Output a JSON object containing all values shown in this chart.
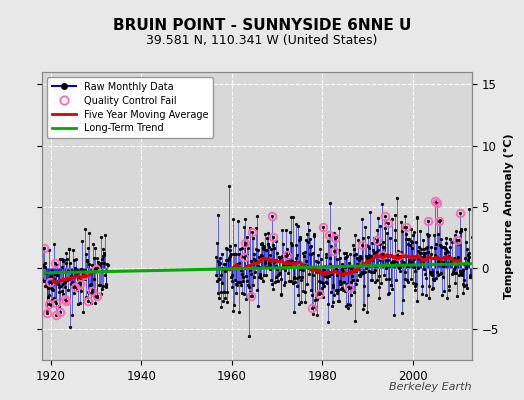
{
  "title": "BRUIN POINT - SUNNYSIDE 6NNE U",
  "subtitle": "39.581 N, 110.341 W (United States)",
  "ylabel": "Temperature Anomaly (°C)",
  "watermark": "Berkeley Earth",
  "xlim": [
    1918,
    2013
  ],
  "ylim": [
    -7.5,
    16
  ],
  "yticks": [
    -5,
    0,
    5,
    10,
    15
  ],
  "xticks": [
    1920,
    1940,
    1960,
    1980,
    2000
  ],
  "bg_color": "#e8e8e8",
  "plot_bg_color": "#d8d8d8",
  "seed": 42,
  "segment1_start": 1918.0,
  "segment1_end": 1932.5,
  "segment2_start": 1956.5,
  "segment2_end": 2013.0,
  "trend_slope": 0.008,
  "trend_intercept": -0.2,
  "colors": {
    "raw_line": "#0000cc",
    "raw_dot": "#000000",
    "qc_fail": "#ff69b4",
    "moving_avg": "#dd0000",
    "trend": "#00aa00",
    "grid": "#ffffff"
  }
}
